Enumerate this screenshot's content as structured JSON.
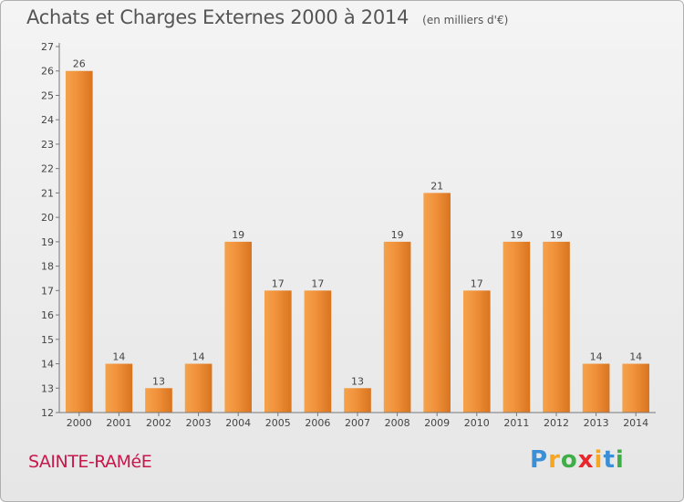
{
  "chart_data": {
    "type": "bar",
    "title": "Achats et Charges Externes 2000 à 2014",
    "subtitle": "(en milliers d'€)",
    "categories": [
      "2000",
      "2001",
      "2002",
      "2003",
      "2004",
      "2005",
      "2006",
      "2007",
      "2008",
      "2009",
      "2010",
      "2011",
      "2012",
      "2013",
      "2014"
    ],
    "values": [
      26,
      14,
      13,
      14,
      19,
      17,
      17,
      13,
      19,
      21,
      17,
      19,
      19,
      14,
      14
    ],
    "ylim": [
      12,
      27
    ],
    "yticks": [
      12,
      13,
      14,
      15,
      16,
      17,
      18,
      19,
      20,
      21,
      22,
      23,
      24,
      25,
      26,
      27
    ],
    "xlabel": "",
    "ylabel": "",
    "grid": false,
    "bar_color": "#f0923a"
  },
  "footer": {
    "commune": "SAINTE-RAMéE",
    "logo_letters": [
      "P",
      "r",
      "o",
      "x",
      "i",
      "t",
      "i"
    ],
    "logo_colors": [
      "#3a8fd6",
      "#f5a623",
      "#3fae49",
      "#e8262b",
      "#f5a623",
      "#3a8fd6",
      "#3fae49"
    ]
  }
}
